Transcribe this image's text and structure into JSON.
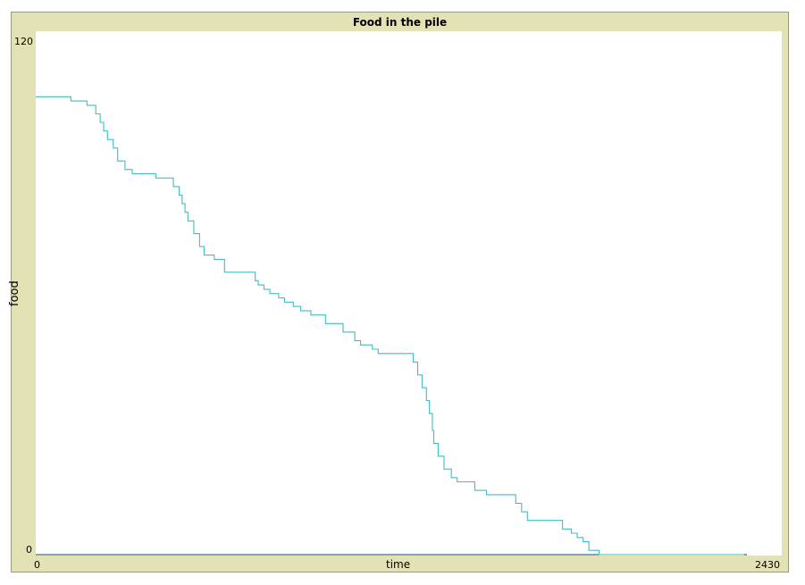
{
  "chart_data": {
    "type": "line",
    "title": "Food in the pile",
    "xlabel": "time",
    "ylabel": "food",
    "xlim": [
      0,
      2430
    ],
    "ylim": [
      0,
      120
    ],
    "x_tick_labels": [
      "0",
      "2430"
    ],
    "y_tick_labels": [
      "0",
      "120"
    ],
    "grid": false,
    "line_color": "#3fbfbf",
    "series": [
      {
        "values": [
          [
            0,
            107
          ],
          [
            120,
            107
          ],
          [
            120,
            106
          ],
          [
            170,
            106
          ],
          [
            175,
            105
          ],
          [
            195,
            105
          ],
          [
            205,
            103
          ],
          [
            220,
            101
          ],
          [
            232,
            99
          ],
          [
            245,
            97
          ],
          [
            265,
            95
          ],
          [
            280,
            92
          ],
          [
            305,
            90
          ],
          [
            330,
            89
          ],
          [
            410,
            89
          ],
          [
            410,
            88
          ],
          [
            465,
            88
          ],
          [
            470,
            86
          ],
          [
            490,
            84
          ],
          [
            500,
            82
          ],
          [
            510,
            80
          ],
          [
            520,
            78
          ],
          [
            540,
            75
          ],
          [
            560,
            72
          ],
          [
            575,
            70
          ],
          [
            610,
            69
          ],
          [
            645,
            66
          ],
          [
            670,
            66
          ],
          [
            750,
            64
          ],
          [
            760,
            63
          ],
          [
            780,
            62
          ],
          [
            800,
            61
          ],
          [
            830,
            60
          ],
          [
            850,
            59
          ],
          [
            880,
            58
          ],
          [
            905,
            57
          ],
          [
            940,
            56
          ],
          [
            990,
            54
          ],
          [
            1050,
            52
          ],
          [
            1090,
            50
          ],
          [
            1110,
            49
          ],
          [
            1150,
            48
          ],
          [
            1170,
            47
          ],
          [
            1280,
            47
          ],
          [
            1290,
            45
          ],
          [
            1305,
            42
          ],
          [
            1320,
            39
          ],
          [
            1335,
            36
          ],
          [
            1345,
            33
          ],
          [
            1355,
            29
          ],
          [
            1360,
            26
          ],
          [
            1375,
            23
          ],
          [
            1395,
            20
          ],
          [
            1420,
            18
          ],
          [
            1440,
            17
          ],
          [
            1500,
            15
          ],
          [
            1540,
            14
          ],
          [
            1600,
            14
          ],
          [
            1640,
            12
          ],
          [
            1660,
            10
          ],
          [
            1680,
            8
          ],
          [
            1700,
            8
          ],
          [
            1800,
            6
          ],
          [
            1830,
            5
          ],
          [
            1850,
            4
          ],
          [
            1870,
            3
          ],
          [
            1890,
            1
          ],
          [
            1925,
            0
          ],
          [
            2420,
            0
          ]
        ]
      }
    ]
  }
}
